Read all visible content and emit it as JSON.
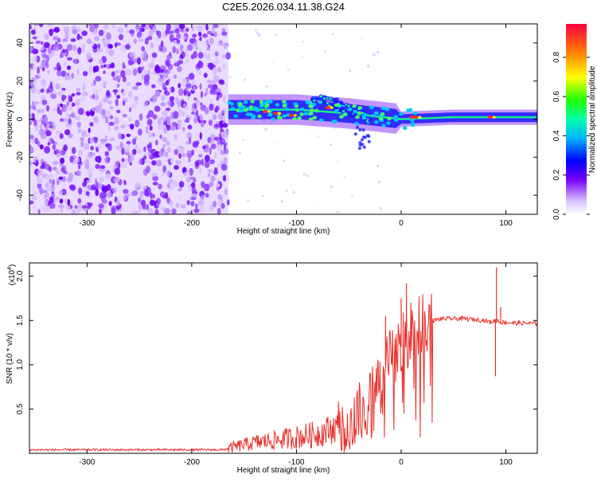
{
  "title": "C2E5.2026.034.11.38.G24",
  "colorbar": {
    "label": "Normalized spectral amplitude",
    "ticks": [
      "0.0",
      "0.2",
      "0.4",
      "0.6",
      "0.8"
    ],
    "tick_values": [
      0.0,
      0.2,
      0.4,
      0.6,
      0.8
    ],
    "range": [
      0,
      0.97
    ]
  },
  "chart_data": [
    {
      "type": "heatmap",
      "title": "",
      "xlabel": "Height of straight line (km)",
      "ylabel": "Frequency (Hz)",
      "xlim": [
        -355,
        130
      ],
      "ylim": [
        -50,
        50
      ],
      "x_ticks": [
        -300,
        -200,
        -100,
        0,
        100
      ],
      "x_tick_labels": [
        "-300",
        "-200",
        "-100",
        "0",
        "100"
      ],
      "y_ticks": [
        40,
        20,
        0,
        -20,
        -40
      ],
      "y_tick_labels": [
        "40",
        "20",
        "0",
        "-20",
        "-40"
      ],
      "regions": [
        {
          "name": "noise",
          "x": [
            -355,
            -165
          ],
          "y": [
            -50,
            50
          ],
          "level": 0.1
        },
        {
          "name": "signal-band",
          "x": [
            -165,
            130
          ],
          "y_center": [
            5,
            5,
            3,
            0,
            1,
            1
          ],
          "x_points": [
            -165,
            -100,
            -50,
            0,
            50,
            130
          ],
          "level": 0.45
        },
        {
          "name": "secondary-band",
          "x": [
            -85,
            -30
          ],
          "y_center": [
            13,
            0
          ],
          "level": 0.35
        }
      ]
    },
    {
      "type": "line",
      "title": "",
      "xlabel": "Height of straight line (km)",
      "ylabel": "SNR (10 * v/v)",
      "y_multiplier": "(x10^4)",
      "xlim": [
        -355,
        130
      ],
      "ylim": [
        0,
        2.15
      ],
      "x_ticks": [
        -300,
        -200,
        -100,
        0,
        100
      ],
      "x_tick_labels": [
        "-300",
        "-200",
        "-100",
        "0",
        "100"
      ],
      "y_ticks": [
        0.5,
        1.0,
        1.5,
        2.0
      ],
      "y_tick_labels": [
        "0.5",
        "1.0",
        "1.5",
        "2.0"
      ],
      "series": [
        {
          "color": "#e8302a",
          "x": [
            -355,
            -300,
            -250,
            -200,
            -170,
            -160,
            -140,
            -120,
            -100,
            -80,
            -60,
            -40,
            -30,
            -20,
            -15,
            -10,
            -5,
            0,
            5,
            10,
            20,
            30,
            40,
            50,
            60,
            70,
            80,
            85,
            90,
            92,
            95,
            100,
            110,
            120,
            130
          ],
          "y": [
            0.04,
            0.04,
            0.04,
            0.04,
            0.04,
            0.07,
            0.12,
            0.15,
            0.18,
            0.22,
            0.3,
            0.45,
            0.6,
            0.8,
            1.0,
            1.05,
            1.15,
            1.2,
            1.3,
            1.38,
            1.45,
            1.5,
            1.52,
            1.52,
            1.52,
            1.51,
            1.5,
            1.48,
            1.5,
            1.5,
            1.48,
            1.48,
            1.47,
            1.47,
            1.46
          ],
          "spikes": [
            {
              "x": 0,
              "y": 1.75
            },
            {
              "x": 5,
              "y": 1.92
            },
            {
              "x": -15,
              "y": 1.55
            },
            {
              "x": 90,
              "y": 0.87
            },
            {
              "x": 91,
              "y": 2.1
            },
            {
              "x": 95,
              "y": 1.65
            }
          ]
        }
      ]
    }
  ]
}
